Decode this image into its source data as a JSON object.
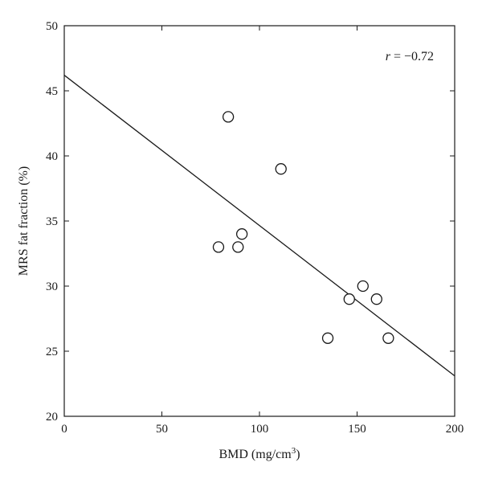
{
  "chart_data": {
    "type": "scatter",
    "title": "",
    "xlabel": "BMD (mg/cm",
    "xlabel_superscript": "3",
    "xlabel_suffix": ")",
    "ylabel": "MRS fat fraction (%)",
    "xlim": [
      0,
      200
    ],
    "ylim": [
      20,
      50
    ],
    "xticks": [
      "0",
      "50",
      "100",
      "150",
      "200"
    ],
    "yticks": [
      "20",
      "25",
      "30",
      "35",
      "40",
      "45",
      "50"
    ],
    "grid": false,
    "points": [
      {
        "x": 79,
        "y": 33
      },
      {
        "x": 84,
        "y": 43
      },
      {
        "x": 89,
        "y": 33
      },
      {
        "x": 91,
        "y": 34
      },
      {
        "x": 111,
        "y": 39
      },
      {
        "x": 135,
        "y": 26
      },
      {
        "x": 146,
        "y": 29
      },
      {
        "x": 153,
        "y": 30
      },
      {
        "x": 160,
        "y": 29
      },
      {
        "x": 166,
        "y": 26
      }
    ],
    "fit_line": {
      "x": [
        0,
        200
      ],
      "y": [
        46.2,
        23.1
      ]
    },
    "annotation": {
      "r_symbol": "r",
      "r_text": " = −0.72"
    }
  }
}
